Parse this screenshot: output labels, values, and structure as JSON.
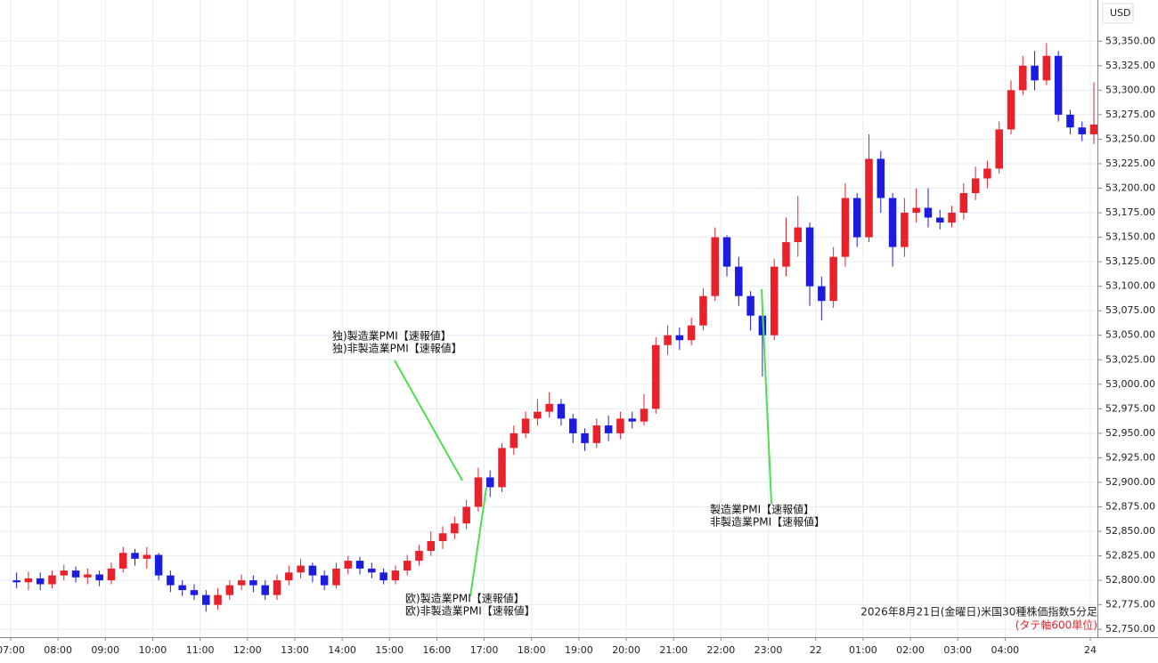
{
  "chart_data": {
    "type": "candlestick",
    "currency": "USD",
    "x": [
      7.125,
      7.375,
      7.625,
      7.875,
      8.125,
      8.375,
      8.625,
      8.875,
      9.125,
      9.375,
      9.625,
      9.875,
      10.125,
      10.375,
      10.625,
      10.875,
      11.125,
      11.375,
      11.625,
      11.875,
      12.125,
      12.375,
      12.625,
      12.875,
      13.125,
      13.375,
      13.625,
      13.875,
      14.125,
      14.375,
      14.625,
      14.875,
      15.125,
      15.375,
      15.625,
      15.875,
      16.125,
      16.375,
      16.625,
      16.875,
      17.125,
      17.375,
      17.625,
      17.875,
      18.125,
      18.375,
      18.625,
      18.875,
      19.125,
      19.375,
      19.625,
      19.875,
      20.125,
      20.375,
      20.625,
      20.875,
      21.125,
      21.375,
      21.625,
      21.875,
      22.125,
      22.375,
      22.625,
      22.875,
      23.125,
      23.375,
      23.625,
      23.875,
      24.125,
      24.375,
      24.625,
      24.875,
      25.125,
      25.375,
      25.625,
      25.875,
      26.125,
      26.375,
      26.625,
      26.875,
      27.125,
      27.375,
      27.625,
      27.875,
      28.125,
      28.375,
      28.625,
      28.875,
      29.125,
      29.375,
      29.625,
      29.875
    ],
    "open": [
      52800,
      52798,
      52802,
      52796,
      52805,
      52810,
      52803,
      52806,
      52800,
      52812,
      52828,
      52822,
      52826,
      52805,
      52795,
      52790,
      52785,
      52775,
      52785,
      52795,
      52800,
      52795,
      52785,
      52800,
      52808,
      52815,
      52805,
      52795,
      52812,
      52820,
      52812,
      52808,
      52800,
      52810,
      52820,
      52830,
      52840,
      52848,
      52858,
      52875,
      52905,
      52895,
      52935,
      52950,
      52965,
      52972,
      52980,
      52965,
      52950,
      52940,
      52958,
      52950,
      52965,
      52962,
      52975,
      53040,
      53050,
      53045,
      53060,
      53090,
      53150,
      53120,
      53090,
      53070,
      53050,
      53120,
      53145,
      53160,
      53100,
      53085,
      53130,
      53190,
      53150,
      53230,
      53190,
      53140,
      53175,
      53180,
      53170,
      53165,
      53175,
      53195,
      53210,
      53220,
      53260,
      53300,
      53325,
      53310,
      53335,
      53275,
      53262,
      53255
    ],
    "high": [
      52808,
      52809,
      52808,
      52810,
      52816,
      52814,
      52812,
      52810,
      52818,
      52834,
      52832,
      52834,
      52828,
      52810,
      52800,
      52796,
      52790,
      52792,
      52800,
      52806,
      52805,
      52800,
      52806,
      52815,
      52822,
      52818,
      52810,
      52818,
      52825,
      52824,
      52818,
      52812,
      52815,
      52826,
      52836,
      52850,
      52855,
      52865,
      52882,
      52915,
      52912,
      52940,
      52958,
      52972,
      52985,
      52992,
      52985,
      52970,
      52955,
      52965,
      52968,
      52972,
      52972,
      52990,
      53048,
      53060,
      53058,
      53068,
      53098,
      53160,
      53152,
      53130,
      53095,
      53080,
      53128,
      53170,
      53192,
      53165,
      53110,
      53140,
      53205,
      53195,
      53255,
      53238,
      53195,
      53190,
      53200,
      53200,
      53178,
      53182,
      53205,
      53222,
      53228,
      53268,
      53310,
      53335,
      53340,
      53348,
      53340,
      53280,
      53268,
      53308
    ],
    "low": [
      52792,
      52790,
      52790,
      52792,
      52800,
      52798,
      52796,
      52794,
      52796,
      52808,
      52815,
      52812,
      52800,
      52788,
      52784,
      52780,
      52768,
      52770,
      52780,
      52790,
      52788,
      52780,
      52780,
      52795,
      52802,
      52798,
      52790,
      52792,
      52806,
      52806,
      52802,
      52796,
      52796,
      52805,
      52815,
      52825,
      52832,
      52842,
      52852,
      52870,
      52885,
      52890,
      52928,
      52945,
      52958,
      52966,
      52958,
      52940,
      52932,
      52935,
      52942,
      52944,
      52955,
      52958,
      52970,
      53030,
      53035,
      53040,
      53055,
      53085,
      53110,
      53080,
      53055,
      53008,
      53045,
      53110,
      53130,
      53080,
      53065,
      53078,
      53120,
      53140,
      53145,
      53175,
      53120,
      53130,
      53165,
      53160,
      53158,
      53160,
      53168,
      53188,
      53200,
      53215,
      53255,
      53295,
      53300,
      53305,
      53268,
      53255,
      53248,
      53245
    ],
    "close": [
      52798,
      52802,
      52796,
      52805,
      52810,
      52803,
      52806,
      52800,
      52812,
      52828,
      52822,
      52826,
      52805,
      52795,
      52790,
      52785,
      52775,
      52785,
      52795,
      52800,
      52795,
      52785,
      52800,
      52808,
      52815,
      52805,
      52795,
      52812,
      52820,
      52812,
      52808,
      52800,
      52810,
      52820,
      52830,
      52840,
      52848,
      52858,
      52875,
      52905,
      52895,
      52935,
      52950,
      52965,
      52972,
      52980,
      52965,
      52950,
      52940,
      52958,
      52950,
      52965,
      52962,
      52975,
      53040,
      53050,
      53045,
      53060,
      53090,
      53150,
      53120,
      53090,
      53070,
      53050,
      53120,
      53145,
      53160,
      53100,
      53085,
      53130,
      53190,
      53150,
      53230,
      53190,
      53140,
      53175,
      53180,
      53170,
      53165,
      53175,
      53195,
      53210,
      53220,
      53260,
      53300,
      53325,
      53310,
      53335,
      53275,
      53262,
      53255,
      53265
    ],
    "up_color": "#e8212a",
    "down_color": "#1c1ce0",
    "xlim": [
      6.775,
      29.95
    ],
    "xticks": [
      {
        "value": 7,
        "label": "07:00"
      },
      {
        "value": 8,
        "label": "08:00"
      },
      {
        "value": 9,
        "label": "09:00"
      },
      {
        "value": 10,
        "label": "10:00"
      },
      {
        "value": 11,
        "label": "11:00"
      },
      {
        "value": 12,
        "label": "12:00"
      },
      {
        "value": 13,
        "label": "13:00"
      },
      {
        "value": 14,
        "label": "14:00"
      },
      {
        "value": 15,
        "label": "15:00"
      },
      {
        "value": 16,
        "label": "16:00"
      },
      {
        "value": 17,
        "label": "17:00"
      },
      {
        "value": 18,
        "label": "18:00"
      },
      {
        "value": 19,
        "label": "19:00"
      },
      {
        "value": 20,
        "label": "20:00"
      },
      {
        "value": 21,
        "label": "21:00"
      },
      {
        "value": 22,
        "label": "22:00"
      },
      {
        "value": 23,
        "label": "23:00"
      },
      {
        "value": 24,
        "label": "22"
      },
      {
        "value": 25,
        "label": "01:00"
      },
      {
        "value": 26,
        "label": "02:00"
      },
      {
        "value": 27,
        "label": "03:00"
      },
      {
        "value": 28,
        "label": "04:00"
      },
      {
        "value": 29.8,
        "label": "24"
      }
    ],
    "ylim": [
      52742,
      53392
    ],
    "yticks": [
      {
        "value": 52750,
        "label": "52,750.00"
      },
      {
        "value": 52775,
        "label": "52,775.00"
      },
      {
        "value": 52800,
        "label": "52,800.00"
      },
      {
        "value": 52825,
        "label": "52,825.00"
      },
      {
        "value": 52850,
        "label": "52,850.00"
      },
      {
        "value": 52875,
        "label": "52,875.00"
      },
      {
        "value": 52900,
        "label": "52,900.00"
      },
      {
        "value": 52925,
        "label": "52,925.00"
      },
      {
        "value": 52950,
        "label": "52,950.00"
      },
      {
        "value": 52975,
        "label": "52,975.00"
      },
      {
        "value": 53000,
        "label": "53,000.00"
      },
      {
        "value": 53025,
        "label": "53,025.00"
      },
      {
        "value": 53050,
        "label": "53,050.00"
      },
      {
        "value": 53075,
        "label": "53,075.00"
      },
      {
        "value": 53100,
        "label": "53,100.00"
      },
      {
        "value": 53125,
        "label": "53,125.00"
      },
      {
        "value": 53150,
        "label": "53,150.00"
      },
      {
        "value": 53175,
        "label": "53,175.00"
      },
      {
        "value": 53200,
        "label": "53,200.00"
      },
      {
        "value": 53225,
        "label": "53,225.00"
      },
      {
        "value": 53250,
        "label": "53,250.00"
      },
      {
        "value": 53275,
        "label": "53,275.00"
      },
      {
        "value": 53300,
        "label": "53,300.00"
      },
      {
        "value": 53325,
        "label": "53,325.00"
      },
      {
        "value": 53350,
        "label": "53,350.00"
      }
    ],
    "grid": true,
    "annotations": [
      {
        "lines": [
          "独)製造業PMI【速報値】",
          "独)非製造業PMI【速報値】"
        ]
      },
      {
        "lines": [
          "欧)製造業PMI【速報値】",
          "欧)非製造業PMI【速報値】"
        ]
      },
      {
        "lines": [
          "製造業PMI【速報値】",
          "非製造業PMI【速報値】"
        ]
      }
    ],
    "caption": "2026年8月21日(金曜日)米国30種株価指数5分足",
    "axis_note": "(タテ軸600単位)"
  }
}
